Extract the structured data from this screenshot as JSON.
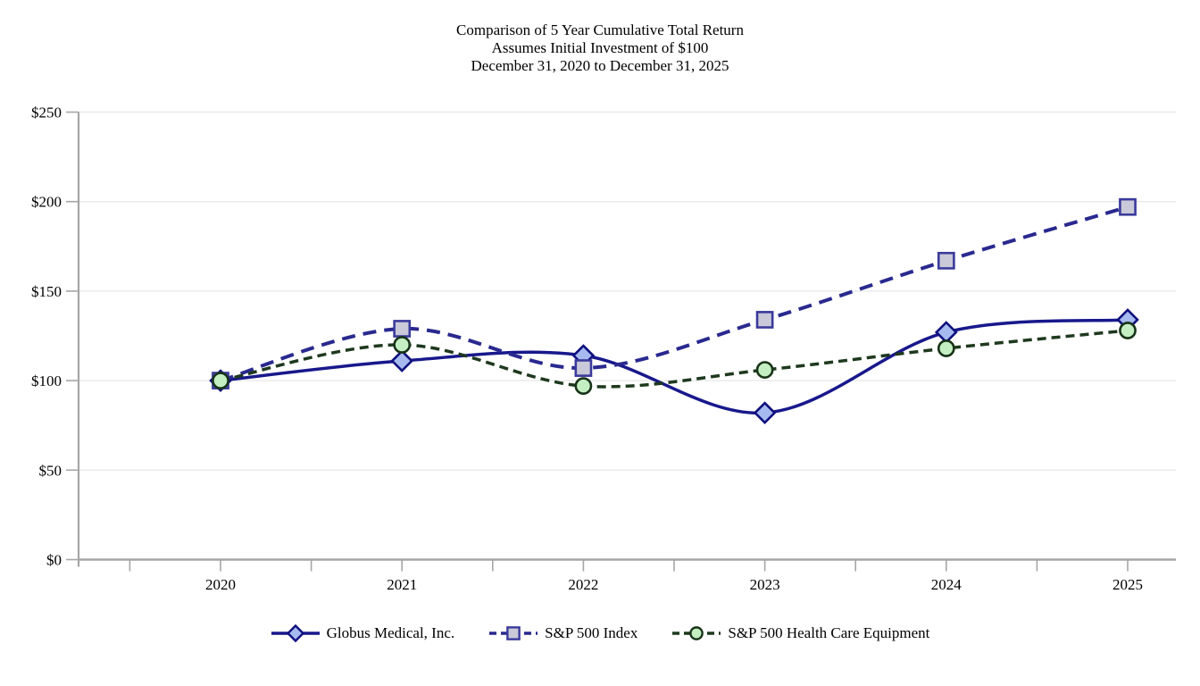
{
  "chart_data": {
    "type": "line",
    "title_lines": [
      "Comparison of 5 Year Cumulative Total Return",
      "Assumes Initial Investment of $100",
      "December 31, 2020 to December 31, 2025"
    ],
    "x_categories": [
      "2020",
      "2021",
      "2022",
      "2023",
      "2024",
      "2025"
    ],
    "y_tick_values": [
      0,
      50,
      100,
      150,
      200,
      250
    ],
    "y_tick_labels": [
      "$0",
      "$50",
      "$100",
      "$150",
      "$200",
      "$250"
    ],
    "ylim": [
      0,
      250
    ],
    "grid": "horizontal",
    "legend_position": "bottom-center",
    "series": [
      {
        "name": "Globus Medical, Inc.",
        "values": [
          100,
          111,
          114,
          82,
          127,
          134
        ],
        "line_color": "#18188c",
        "line_style": "solid",
        "dash": "none",
        "line_width": 3.5,
        "marker": "diamond",
        "marker_fill": "#a6baf0",
        "marker_border": "#10107e"
      },
      {
        "name": "S&P 500 Index",
        "values": [
          100,
          129,
          107,
          134,
          167,
          197
        ],
        "line_color": "#29298f",
        "line_style": "dashed",
        "dash": "15,9",
        "line_width": 4,
        "marker": "square",
        "marker_fill": "#c9c9d9",
        "marker_border": "#3a3a9c"
      },
      {
        "name": "S&P 500 Health Care Equipment",
        "values": [
          100,
          120,
          97,
          106,
          118,
          128
        ],
        "line_color": "#1e391e",
        "line_style": "dashed",
        "dash": "10,6",
        "line_width": 3.5,
        "marker": "circle",
        "marker_fill": "#c3efc3",
        "marker_border": "#183318"
      }
    ],
    "axis_color": "#a6a6a6",
    "gridline_color": "#e9e9e9",
    "text_color": "#000000"
  }
}
